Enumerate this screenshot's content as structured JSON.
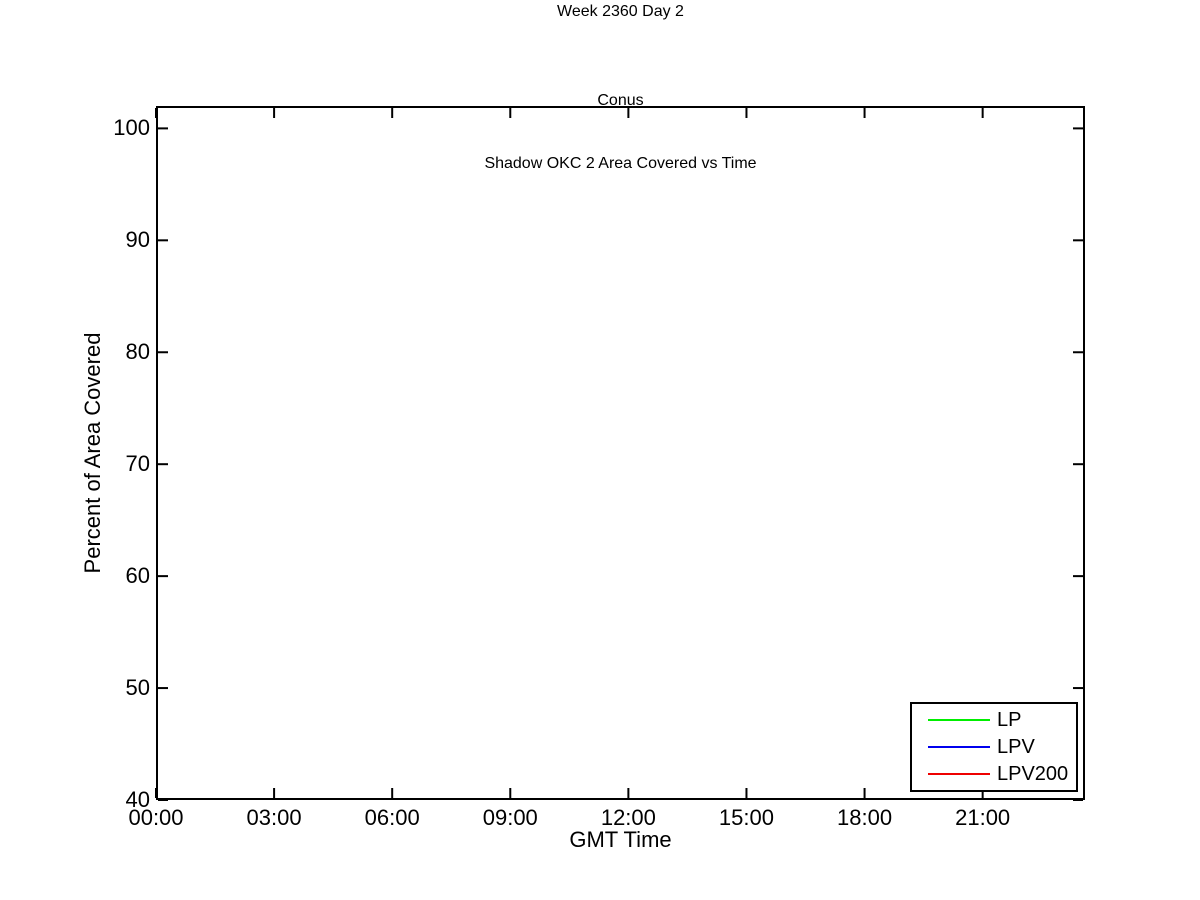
{
  "chart_data": {
    "type": "line",
    "suptitle": "Week 2360 Day 2",
    "title_line1": "Conus",
    "title_line2": "Shadow OKC 2 Area Covered vs Time",
    "xlabel": "GMT Time",
    "ylabel": "Percent of Area Covered",
    "xlim_hours": [
      0,
      23.6
    ],
    "ylim": [
      40,
      102
    ],
    "x_ticks": [
      {
        "hour": 0,
        "label": "00:00"
      },
      {
        "hour": 3,
        "label": "03:00"
      },
      {
        "hour": 6,
        "label": "06:00"
      },
      {
        "hour": 9,
        "label": "09:00"
      },
      {
        "hour": 12,
        "label": "12:00"
      },
      {
        "hour": 15,
        "label": "15:00"
      },
      {
        "hour": 18,
        "label": "18:00"
      },
      {
        "hour": 21,
        "label": "21:00"
      }
    ],
    "y_ticks": [
      40,
      50,
      60,
      70,
      80,
      90,
      100
    ],
    "grid": false,
    "box": true,
    "axis_color": "#000000",
    "background_color": "#FFFFFF",
    "legend": {
      "position": "bottom-right",
      "entries": [
        {
          "name": "LP",
          "color": "#00EE00"
        },
        {
          "name": "LPV",
          "color": "#0000EE"
        },
        {
          "name": "LPV200",
          "color": "#EE0000"
        }
      ]
    },
    "series": [
      {
        "name": "LP",
        "color": "#00EE00",
        "x_hours": [],
        "values": []
      },
      {
        "name": "LPV",
        "color": "#0000EE",
        "x_hours": [],
        "values": []
      },
      {
        "name": "LPV200",
        "color": "#EE0000",
        "x_hours": [],
        "values": []
      }
    ]
  }
}
